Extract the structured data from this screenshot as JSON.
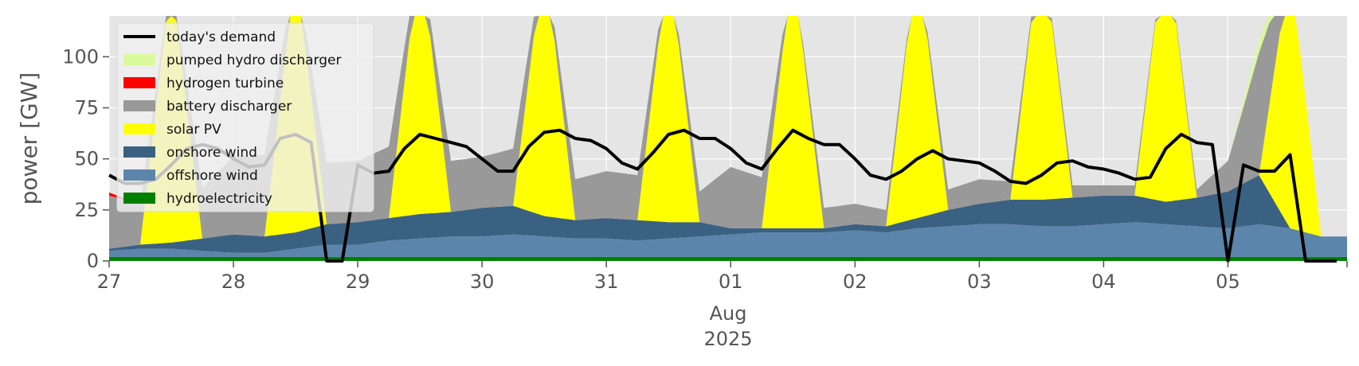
{
  "chart_data": {
    "type": "area",
    "title": "",
    "xlabel": "",
    "ylabel": "power [GW]",
    "ylim": [
      0,
      120
    ],
    "y_ticks": [
      0,
      25,
      50,
      75,
      100
    ],
    "y_tick_labels": [
      "0",
      "25",
      "50",
      "75",
      "100"
    ],
    "x_start": "2025-07-27T00:00",
    "x_end": "2025-08-05T23:00",
    "x_ticks": [
      {
        "x": "2025-07-27T00:00",
        "label": "27"
      },
      {
        "x": "2025-07-28T00:00",
        "label": "28"
      },
      {
        "x": "2025-07-29T00:00",
        "label": "29"
      },
      {
        "x": "2025-07-30T00:00",
        "label": "30"
      },
      {
        "x": "2025-07-31T00:00",
        "label": "31"
      },
      {
        "x": "2025-08-01T00:00",
        "label": "01"
      },
      {
        "x": "2025-08-02T00:00",
        "label": "02"
      },
      {
        "x": "2025-08-03T00:00",
        "label": "03"
      },
      {
        "x": "2025-08-04T00:00",
        "label": "04"
      },
      {
        "x": "2025-08-05T00:00",
        "label": "05"
      }
    ],
    "x_sublabel_month": "Aug",
    "x_sublabel_year": "2025",
    "grid": true,
    "background": "#e5e5e5",
    "legend_position": "top-left",
    "legend": [
      {
        "label": "today's demand",
        "color": "#000000",
        "kind": "line"
      },
      {
        "label": "pumped hydro discharger",
        "color": "#d9f99b",
        "kind": "patch"
      },
      {
        "label": "hydrogen turbine",
        "color": "#ff0000",
        "kind": "patch"
      },
      {
        "label": "battery discharger",
        "color": "#999999",
        "kind": "patch"
      },
      {
        "label": "solar PV",
        "color": "#ffff00",
        "kind": "patch"
      },
      {
        "label": "onshore wind",
        "color": "#3b6182",
        "kind": "patch"
      },
      {
        "label": "offshore wind",
        "color": "#5b85aa",
        "kind": "patch"
      },
      {
        "label": "hydroelectricity",
        "color": "#008000",
        "kind": "patch"
      }
    ],
    "stack_order": [
      "hydroelectricity",
      "offshore wind",
      "onshore wind",
      "solar PV",
      "battery discharger",
      "hydrogen turbine",
      "pumped hydro discharger"
    ],
    "series": [
      {
        "name": "hydroelectricity",
        "color": "#008000",
        "step_hours": 6,
        "values": [
          2,
          2,
          2,
          2,
          2,
          2,
          2,
          2,
          2,
          2,
          2,
          2,
          2,
          2,
          2,
          2,
          2,
          2,
          2,
          2,
          2,
          2,
          2,
          2,
          2,
          2,
          2,
          2,
          2,
          2,
          2,
          2,
          2,
          2,
          2,
          2,
          2,
          2,
          2,
          2
        ]
      },
      {
        "name": "offshore wind",
        "color": "#5b85aa",
        "step_hours": 6,
        "values": [
          3,
          4,
          4,
          3,
          2,
          2,
          4,
          6,
          6,
          8,
          9,
          10,
          10,
          11,
          10,
          9,
          9,
          8,
          9,
          10,
          11,
          12,
          12,
          12,
          13,
          12,
          14,
          15,
          16,
          16,
          15,
          15,
          16,
          17,
          16,
          15,
          14,
          16,
          14,
          10
        ]
      },
      {
        "name": "onshore wind",
        "color": "#3b6182",
        "step_hours": 6,
        "values": [
          1,
          2,
          3,
          6,
          9,
          8,
          8,
          10,
          11,
          11,
          12,
          12,
          14,
          14,
          10,
          9,
          10,
          10,
          8,
          7,
          3,
          2,
          2,
          2,
          3,
          3,
          5,
          8,
          10,
          12,
          13,
          14,
          14,
          13,
          11,
          14,
          18,
          24,
          0,
          0
        ]
      },
      {
        "name": "solar PV",
        "color": "#ffff00",
        "step_hours": 6,
        "values": [
          0,
          0,
          130,
          0,
          0,
          0,
          130,
          0,
          0,
          0,
          130,
          0,
          0,
          0,
          130,
          0,
          0,
          0,
          130,
          0,
          0,
          0,
          130,
          0,
          0,
          0,
          130,
          0,
          0,
          0,
          130,
          0,
          0,
          0,
          130,
          0,
          0,
          0,
          130,
          0
        ]
      },
      {
        "name": "battery discharger",
        "color": "#999999",
        "step_hours": 6,
        "values": [
          26,
          20,
          0,
          25,
          38,
          40,
          0,
          30,
          30,
          35,
          0,
          25,
          25,
          28,
          0,
          20,
          23,
          22,
          0,
          15,
          30,
          25,
          0,
          10,
          10,
          8,
          0,
          10,
          12,
          9,
          0,
          6,
          5,
          5,
          0,
          4,
          15,
          60,
          0,
          0
        ]
      },
      {
        "name": "hydrogen turbine",
        "color": "#ff0000",
        "step_hours": 6,
        "values": [
          1.5,
          0,
          0,
          0,
          0,
          0,
          0,
          0,
          0,
          0,
          0,
          0,
          0,
          0,
          0,
          0,
          0,
          0,
          0,
          0,
          0,
          0,
          0,
          0,
          0,
          0,
          0,
          0,
          0,
          0,
          0,
          0,
          0,
          0,
          0,
          0,
          0,
          0,
          0,
          0
        ]
      },
      {
        "name": "pumped hydro discharger",
        "color": "#d9f99b",
        "step_hours": 6,
        "values": [
          0,
          0,
          0,
          0,
          0,
          0,
          0,
          0,
          0,
          0,
          0,
          0,
          0,
          0,
          0,
          0,
          0,
          0,
          0,
          0,
          0,
          0,
          0,
          0,
          0,
          0,
          0,
          0,
          0,
          0,
          0,
          0,
          0,
          0,
          0,
          0,
          0,
          6,
          0,
          0
        ]
      },
      {
        "name": "today's demand",
        "color": "#000000",
        "kind": "line",
        "step_hours": 3,
        "values": [
          42,
          38,
          38,
          40,
          47,
          55,
          57,
          55,
          50,
          46,
          47,
          60,
          62,
          58,
          0,
          0,
          47,
          43,
          44,
          55,
          62,
          60,
          58,
          56,
          50,
          44,
          44,
          56,
          63,
          64,
          60,
          59,
          55,
          48,
          45,
          53,
          62,
          64,
          60,
          60,
          55,
          48,
          45,
          55,
          64,
          60,
          57,
          57,
          50,
          42,
          40,
          44,
          50,
          54,
          50,
          49,
          48,
          44,
          39,
          38,
          42,
          48,
          49,
          46,
          45,
          43,
          40,
          41,
          55,
          62,
          58,
          57,
          0,
          47,
          44,
          44,
          52,
          0,
          0,
          0
        ]
      }
    ]
  }
}
